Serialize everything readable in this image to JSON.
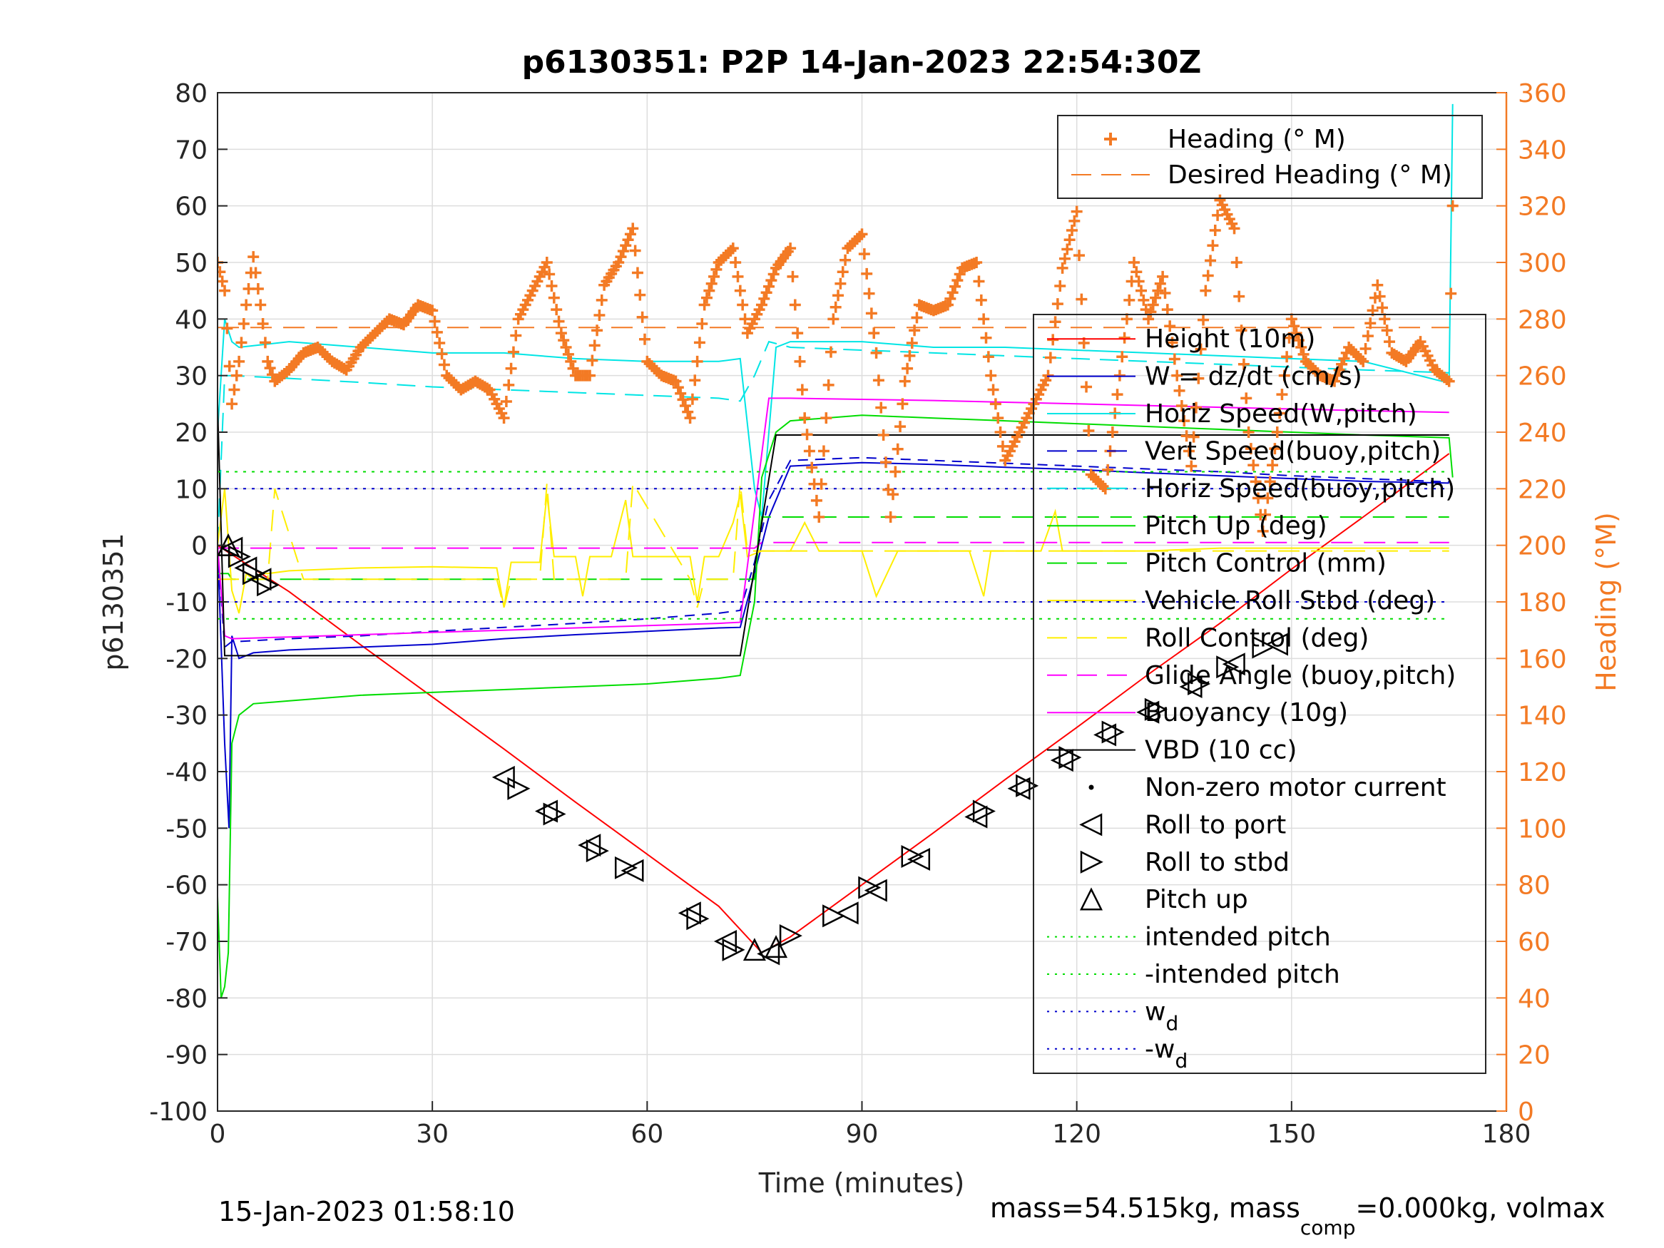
{
  "chart_data": {
    "type": "line",
    "title": "p6130351: P2P 14-Jan-2023 22:54:30Z",
    "xlabel": "Time (minutes)",
    "ylabel": "p6130351",
    "ylabel_right": "Heading (°M)",
    "xlim": [
      0,
      180
    ],
    "ylim": [
      -100,
      80
    ],
    "ylim_right": [
      0,
      360
    ],
    "x_ticks": [
      "0",
      "30",
      "60",
      "90",
      "120",
      "150",
      "180"
    ],
    "y_ticks": [
      "-100",
      "-90",
      "-80",
      "-70",
      "-60",
      "-50",
      "-40",
      "-30",
      "-20",
      "-10",
      "0",
      "10",
      "20",
      "30",
      "40",
      "50",
      "60",
      "70",
      "80"
    ],
    "y_ticks_right": [
      "0",
      "20",
      "40",
      "60",
      "80",
      "100",
      "120",
      "140",
      "160",
      "180",
      "200",
      "220",
      "240",
      "260",
      "280",
      "300",
      "320",
      "340",
      "360"
    ],
    "grid": true,
    "legend_heading": [
      {
        "label": "Heading (° M)",
        "color": "#f37a24",
        "style": "plus"
      },
      {
        "label": "Desired Heading (° M)",
        "color": "#f37a24",
        "style": "dashed"
      }
    ],
    "legend_main": [
      {
        "label": "Height (10m)",
        "color": "#ff0000",
        "style": "solid"
      },
      {
        "label": "W = dz/dt (cm/s)",
        "color": "#0000cc",
        "style": "solid"
      },
      {
        "label": "Horiz Speed(W,pitch)",
        "color": "#00e5e5",
        "style": "solid"
      },
      {
        "label": "Vert Speed(buoy,pitch)",
        "color": "#0000cc",
        "style": "dashed"
      },
      {
        "label": "Horiz Speed(buoy,pitch)",
        "color": "#00e5e5",
        "style": "dashed"
      },
      {
        "label": "Pitch Up (deg)",
        "color": "#00dd00",
        "style": "solid"
      },
      {
        "label": "Pitch Control (mm)",
        "color": "#00dd00",
        "style": "dashed"
      },
      {
        "label": "Vehicle Roll Stbd (deg)",
        "color": "#ffee00",
        "style": "solid"
      },
      {
        "label": "Roll Control (deg)",
        "color": "#ffee00",
        "style": "dashed"
      },
      {
        "label": "Glide Angle (buoy,pitch)",
        "color": "#ff00ff",
        "style": "dashed"
      },
      {
        "label": "Buoyancy (10g)",
        "color": "#ff00ff",
        "style": "solid"
      },
      {
        "label": "VBD (10 cc)",
        "color": "#000000",
        "style": "solid"
      },
      {
        "label": "Non-zero motor current",
        "color": "#000000",
        "style": "dot"
      },
      {
        "label": "Roll to port",
        "color": "#000000",
        "style": "tri-left"
      },
      {
        "label": "Roll to stbd",
        "color": "#000000",
        "style": "tri-right"
      },
      {
        "label": "Pitch up",
        "color": "#000000",
        "style": "tri-up"
      },
      {
        "label": "intended pitch",
        "color": "#00dd00",
        "style": "dotted"
      },
      {
        "label": "-intended pitch",
        "color": "#00dd00",
        "style": "dotted"
      },
      {
        "label": "w",
        "sub": "d",
        "color": "#0000cc",
        "style": "dotted"
      },
      {
        "label": "-w",
        "sub": "d",
        "color": "#0000cc",
        "style": "dotted"
      }
    ],
    "series": [
      {
        "name": "Height (10m)",
        "axis": "left",
        "color": "#ff0000",
        "x": [
          0,
          10,
          20,
          30,
          40,
          50,
          60,
          70,
          76,
          80,
          90,
          100,
          110,
          120,
          130,
          140,
          150,
          160,
          172
        ],
        "y": [
          0,
          -8.2,
          -17.6,
          -26.8,
          -36,
          -45.4,
          -54.6,
          -63.8,
          -72,
          -69.2,
          -60,
          -50.8,
          -41.4,
          -32.2,
          -22.8,
          -13.8,
          -4.2,
          5.0,
          16.2
        ]
      },
      {
        "name": "W = dz/dt (cm/s)",
        "axis": "left",
        "color": "#0000cc",
        "x": [
          0,
          1,
          1.6,
          2,
          3,
          5,
          10,
          20,
          30,
          40,
          50,
          60,
          70,
          73,
          75,
          77,
          80,
          90,
          100,
          110,
          120,
          130,
          140,
          150,
          160,
          172
        ],
        "y": [
          0,
          -35,
          -50,
          -16,
          -20,
          -19,
          -18.5,
          -18,
          -17.5,
          -16.5,
          -15.8,
          -15.2,
          -14.6,
          -14.5,
          -5,
          5,
          14,
          14.6,
          14.3,
          13.8,
          13.4,
          12.8,
          12.3,
          11.8,
          11.3,
          11
        ]
      },
      {
        "name": "Horiz Speed(W,pitch)",
        "axis": "left",
        "color": "#00e5e5",
        "x": [
          0,
          1,
          2,
          3,
          10,
          20,
          30,
          40,
          50,
          60,
          70,
          73,
          75,
          76,
          78,
          80,
          90,
          100,
          110,
          120,
          130,
          140,
          150,
          160,
          171,
          172,
          172.5
        ],
        "y": [
          20,
          40,
          36,
          35,
          36,
          35,
          34,
          34,
          33,
          32.5,
          32.5,
          33,
          10,
          5,
          35,
          36,
          36,
          35,
          35,
          34.5,
          34,
          33.5,
          33,
          32.5,
          29,
          29,
          78
        ]
      },
      {
        "name": "Vert Speed(buoy,pitch)",
        "axis": "left",
        "color": "#0000cc",
        "dash": "14 10",
        "x": [
          0,
          1,
          2,
          3,
          10,
          20,
          30,
          40,
          50,
          60,
          70,
          73,
          75,
          77,
          80,
          90,
          100,
          110,
          120,
          130,
          140,
          150,
          160,
          172
        ],
        "y": [
          0,
          -18,
          -17,
          -17,
          -16.5,
          -16,
          -15.2,
          -14.5,
          -13.8,
          -13,
          -12,
          -11.5,
          -3,
          8,
          15,
          15.5,
          15,
          14.5,
          14,
          13.5,
          13,
          12.3,
          11.8,
          11.2
        ]
      },
      {
        "name": "Horiz Speed(buoy,pitch)",
        "axis": "left",
        "color": "#00e5e5",
        "dash": "26 14",
        "x": [
          0,
          1,
          2,
          10,
          20,
          30,
          40,
          50,
          60,
          70,
          73,
          75,
          77,
          80,
          90,
          100,
          110,
          120,
          130,
          140,
          150,
          160,
          172
        ],
        "y": [
          0,
          30,
          30,
          29.5,
          28.8,
          28,
          27.5,
          27,
          26.5,
          26,
          25.5,
          30,
          36,
          35,
          34.5,
          34,
          33.5,
          33,
          32.5,
          32,
          31.5,
          31,
          30.5
        ]
      },
      {
        "name": "Pitch Up (deg)",
        "axis": "left",
        "color": "#00dd00",
        "x": [
          0,
          0.5,
          1,
          1.5,
          2,
          3,
          5,
          10,
          20,
          30,
          40,
          50,
          60,
          70,
          73,
          75,
          76,
          78,
          80,
          90,
          100,
          110,
          120,
          130,
          140,
          150,
          160,
          172,
          172.5
        ],
        "y": [
          -62,
          -80,
          -78,
          -72,
          -35,
          -30,
          -28,
          -27.5,
          -26.5,
          -26,
          -25.5,
          -25,
          -24.5,
          -23.5,
          -23,
          -10,
          12,
          20,
          22,
          23,
          22.5,
          22,
          21.5,
          21,
          20.5,
          20,
          19.5,
          19,
          12
        ]
      },
      {
        "name": "Pitch Control (mm)",
        "axis": "left",
        "color": "#00dd00",
        "dash": "30 16",
        "x": [
          0,
          1.5,
          2,
          73,
          75,
          76,
          172
        ],
        "y": [
          -5,
          -5,
          -6,
          -6,
          -6,
          5,
          5
        ]
      },
      {
        "name": "Vehicle Roll Stbd (deg)",
        "axis": "left",
        "color": "#ffee00",
        "x": [
          0,
          1,
          2,
          3,
          4,
          5,
          6,
          7,
          10,
          20,
          30,
          39,
          40,
          41,
          45,
          46,
          47,
          50,
          51,
          52,
          55,
          57,
          58,
          60,
          66,
          67,
          68,
          70,
          72,
          73,
          74,
          76,
          78,
          80,
          82,
          84,
          86,
          88,
          90,
          92,
          95,
          96,
          97,
          100,
          105,
          107,
          108,
          110,
          115,
          117,
          118,
          120,
          125,
          130,
          140,
          150,
          160,
          172
        ],
        "y": [
          0,
          10,
          -8,
          -12,
          -5,
          -6,
          -5,
          -5,
          -4.5,
          -4,
          -3.8,
          -4,
          -11,
          -3,
          -3,
          9,
          -2,
          -2,
          -9,
          -2,
          -2,
          8,
          -2,
          -2,
          -2,
          -10,
          -2,
          -2,
          4,
          9,
          -2,
          -1,
          -1,
          -1,
          4,
          -1,
          -1,
          -1,
          -1,
          -9,
          -1,
          -1,
          -1,
          -1,
          -1,
          -9,
          -1,
          -1,
          -1,
          6,
          -1,
          -1,
          -1,
          -1,
          -0.5,
          -0.5,
          -0.5,
          -0.5
        ]
      },
      {
        "name": "Roll Control (deg)",
        "axis": "left",
        "color": "#ffee00",
        "dash": "30 16",
        "x": [
          0,
          7,
          8,
          12,
          13,
          39,
          40,
          41,
          45,
          46,
          47,
          57,
          58,
          66,
          67,
          68,
          72,
          73,
          74,
          172
        ],
        "y": [
          -6,
          -6,
          10,
          -6,
          -6,
          -6,
          -11,
          -6,
          -6,
          11,
          -6,
          -6,
          11,
          -6,
          -11,
          -6,
          -6,
          11,
          -1,
          -1
        ]
      },
      {
        "name": "Glide Angle (buoy,pitch)",
        "axis": "left",
        "color": "#ff00ff",
        "dash": "30 16",
        "x": [
          0,
          75,
          76,
          172
        ],
        "y": [
          -0.5,
          -0.5,
          0.5,
          0.5
        ]
      },
      {
        "name": "Buoyancy (10g)",
        "axis": "left",
        "color": "#ff00ff",
        "x": [
          0,
          1,
          2,
          10,
          20,
          30,
          40,
          50,
          60,
          70,
          73,
          77,
          80,
          90,
          100,
          110,
          120,
          130,
          140,
          150,
          160,
          172
        ],
        "y": [
          0,
          -16,
          -16.5,
          -16.2,
          -15.8,
          -15.4,
          -15,
          -14.6,
          -14.2,
          -13.8,
          -13.6,
          26,
          26,
          25.8,
          25.6,
          25.3,
          25,
          24.7,
          24.4,
          24.1,
          23.8,
          23.5
        ]
      },
      {
        "name": "VBD (10 cc)",
        "axis": "left",
        "color": "#000000",
        "x": [
          0,
          1,
          1.5,
          73,
          78,
          172
        ],
        "y": [
          25,
          -19.5,
          -19.5,
          -19.5,
          19.5,
          19.5
        ]
      },
      {
        "name": "intended pitch",
        "axis": "left",
        "color": "#00dd00",
        "dash": "4 8",
        "x": [
          0,
          172
        ],
        "y": [
          13,
          13
        ]
      },
      {
        "name": "-intended pitch",
        "axis": "left",
        "color": "#00dd00",
        "dash": "4 8",
        "x": [
          0,
          172
        ],
        "y": [
          -13,
          -13
        ]
      },
      {
        "name": "w_d",
        "axis": "left",
        "color": "#0000cc",
        "dash": "4 8",
        "x": [
          0,
          172
        ],
        "y": [
          10,
          10
        ]
      },
      {
        "name": "-w_d",
        "axis": "left",
        "color": "#0000cc",
        "dash": "4 8",
        "x": [
          0,
          172
        ],
        "y": [
          -10,
          -10
        ]
      },
      {
        "name": "Desired Heading (° M)",
        "axis": "right",
        "color": "#f37a24",
        "dash": "30 16",
        "x": [
          0,
          172
        ],
        "y": [
          277,
          277
        ]
      },
      {
        "name": "Heading (° M)",
        "axis": "right",
        "color": "#f37a24",
        "marker": "plus",
        "x": [
          0,
          1,
          2,
          3,
          4,
          5,
          6,
          7,
          8,
          10,
          12,
          14,
          16,
          18,
          20,
          22,
          24,
          26,
          28,
          30,
          32,
          34,
          36,
          38,
          40,
          42,
          44,
          46,
          48,
          50,
          52,
          54,
          56,
          58,
          60,
          62,
          64,
          66,
          68,
          70,
          72,
          74,
          76,
          78,
          80,
          82,
          84,
          86,
          88,
          90,
          92,
          94,
          96,
          98,
          100,
          102,
          104,
          106,
          108,
          110,
          112,
          114,
          116,
          118,
          120,
          122,
          124,
          126,
          128,
          130,
          132,
          134,
          136,
          138,
          140,
          142,
          144,
          146,
          148,
          150,
          152,
          154,
          156,
          158,
          160,
          162,
          164,
          166,
          168,
          170,
          172,
          172.5
        ],
        "y": [
          300,
          290,
          250,
          265,
          285,
          302,
          285,
          265,
          258,
          262,
          268,
          270,
          265,
          262,
          270,
          275,
          280,
          278,
          285,
          283,
          260,
          255,
          258,
          255,
          245,
          280,
          290,
          300,
          275,
          260,
          260,
          292,
          300,
          312,
          265,
          260,
          258,
          245,
          285,
          300,
          305,
          275,
          285,
          298,
          305,
          245,
          210,
          280,
          305,
          310,
          268,
          210,
          258,
          285,
          283,
          285,
          298,
          300,
          260,
          230,
          240,
          250,
          260,
          298,
          318,
          225,
          220,
          260,
          300,
          280,
          295,
          260,
          228,
          290,
          322,
          312,
          240,
          205,
          240,
          280,
          265,
          260,
          258,
          270,
          265,
          292,
          268,
          265,
          272,
          262,
          258,
          320
        ]
      }
    ],
    "roll_port_markers": [
      [
        2,
        -0.5
      ],
      [
        4,
        -4
      ],
      [
        6,
        -6
      ],
      [
        40,
        -41
      ],
      [
        46,
        -47
      ],
      [
        52,
        -53
      ],
      [
        58,
        -57.5
      ],
      [
        66,
        -65
      ],
      [
        71,
        -70
      ],
      [
        77,
        -72.2
      ],
      [
        88,
        -65
      ],
      [
        92,
        -61
      ],
      [
        98,
        -55.5
      ],
      [
        106,
        -48
      ],
      [
        112,
        -43
      ],
      [
        118,
        -38
      ],
      [
        124,
        -33.5
      ],
      [
        130,
        -29.5
      ],
      [
        136,
        -25
      ],
      [
        142,
        -21
      ],
      [
        148,
        -17.5
      ]
    ],
    "roll_stbd_markers": [
      [
        3,
        -2
      ],
      [
        5,
        -5
      ],
      [
        7,
        -7
      ],
      [
        42,
        -43
      ],
      [
        47,
        -47.5
      ],
      [
        53,
        -54
      ],
      [
        57,
        -57
      ],
      [
        67,
        -66
      ],
      [
        72,
        -71.5
      ],
      [
        80,
        -69
      ],
      [
        86,
        -65.5
      ],
      [
        91,
        -60.5
      ],
      [
        97,
        -55
      ],
      [
        107,
        -47
      ],
      [
        113,
        -42.5
      ],
      [
        119,
        -37.5
      ],
      [
        125,
        -33
      ],
      [
        131,
        -29
      ],
      [
        137,
        -24.5
      ],
      [
        141,
        -21.5
      ],
      [
        146,
        -18
      ]
    ],
    "pitch_up_markers": [
      [
        1.5,
        0
      ],
      [
        75,
        -71.5
      ],
      [
        78,
        -71
      ]
    ],
    "footer_left": "15-Jan-2023 01:58:10",
    "footer_right_a": "mass=54.515kg, mass",
    "footer_right_sub": "comp",
    "footer_right_b": "=0.000kg, volmax"
  }
}
